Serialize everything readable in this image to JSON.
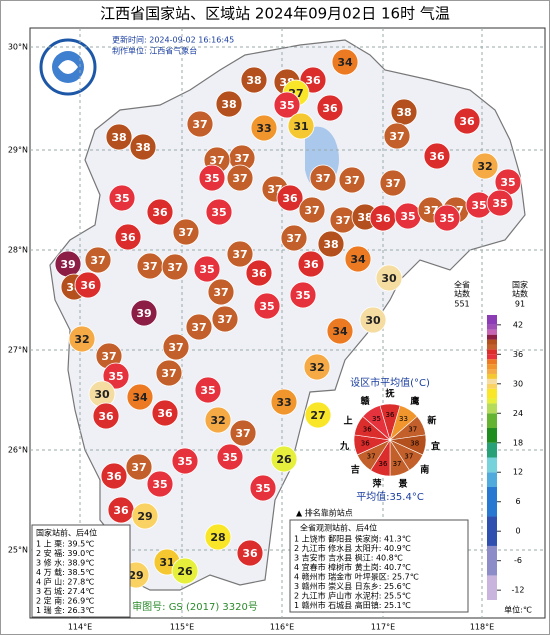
{
  "header": {
    "title": "江西省国家站、区域站  2024年09月02日 16时  气温",
    "updated": "更新时间: 2024-09-02 16:16:45",
    "maker": "制作单位: 江西省气象台"
  },
  "lat_labels": [
    "30°N",
    "29°N",
    "28°N",
    "27°N",
    "26°N",
    "25°N"
  ],
  "lon_labels": [
    "114°E",
    "115°E",
    "116°E",
    "117°E",
    "118°E"
  ],
  "stations": [
    34,
    38,
    38,
    36,
    27,
    38,
    35,
    36,
    38,
    36,
    37,
    33,
    31,
    37,
    38,
    38,
    36,
    32,
    37,
    37,
    35,
    37,
    37,
    37,
    37,
    35,
    37,
    36,
    35,
    36,
    35,
    37,
    37,
    38,
    36,
    35,
    37,
    37,
    35,
    35,
    35,
    36,
    37,
    37,
    37,
    38,
    37,
    37,
    37,
    39,
    38,
    36,
    35,
    36,
    36,
    34,
    30,
    37,
    35,
    35,
    39,
    37,
    37,
    30,
    34,
    32,
    37,
    37,
    35,
    37,
    32,
    30,
    34,
    35,
    33,
    27,
    36,
    36,
    32,
    37,
    35,
    26,
    35,
    37,
    36,
    35,
    35,
    36,
    29,
    28,
    36,
    31,
    29,
    26
  ],
  "color_scale": [
    [
      -14,
      "#c8b4dc"
    ],
    [
      -9,
      "#8c8cc8"
    ],
    [
      -3,
      "#3050b0"
    ],
    [
      3,
      "#2878d2"
    ],
    [
      9,
      "#50aadc"
    ],
    [
      12,
      "#78d2dc"
    ],
    [
      15,
      "#28a078"
    ],
    [
      18,
      "#1e8c1e"
    ],
    [
      21,
      "#64b432"
    ],
    [
      24,
      "#b4dc5a"
    ],
    [
      26,
      "#e6f03c"
    ],
    [
      27,
      "#fae628"
    ],
    [
      29,
      "#fad264"
    ],
    [
      30,
      "#f5dca0"
    ],
    [
      31,
      "#f5c832"
    ],
    [
      32,
      "#f5aa46"
    ],
    [
      33,
      "#f0962d"
    ],
    [
      34,
      "#ec7a23"
    ],
    [
      35,
      "#e6323c"
    ],
    [
      36,
      "#dc2d2d"
    ],
    [
      37,
      "#c35f2a"
    ],
    [
      38,
      "#b4501e"
    ],
    [
      39,
      "#8c1e46"
    ],
    [
      40,
      "#c864b4"
    ],
    [
      41,
      "#a050b4"
    ],
    [
      42,
      "#8c3cb4"
    ]
  ],
  "colorbar": {
    "lim": [
      -14,
      44
    ],
    "ticks": [
      42,
      36,
      30,
      24,
      18,
      12,
      6,
      0,
      -6,
      -12
    ],
    "total_label": "全省\n站数",
    "total": 551,
    "national_label": "国家\n站数",
    "national": 91,
    "unit": "单位:℃"
  },
  "pie": {
    "title": "设区市平均值(°C)",
    "cities": [
      "抚",
      "鹰",
      "新",
      "宜",
      "南",
      "景",
      "萍",
      "吉",
      "九",
      "上",
      "赣"
    ],
    "values": [
      36,
      33,
      37,
      38,
      37,
      37,
      36,
      37,
      36,
      36,
      35
    ],
    "average": "平均值:35.4°C"
  },
  "national_rank": {
    "title": "国家站前、后4位",
    "rows": [
      "1 上  栗: 39.5℃",
      "2 安  福: 39.0℃",
      "3 修  水: 38.9℃",
      "4 万  载: 38.5℃",
      "4 庐  山: 27.8℃",
      "3 石  城: 27.4℃",
      "2 定  南: 26.9℃",
      "1 瑞  金: 26.3℃"
    ]
  },
  "all_rank": {
    "marker": "▲ 排名靠前站点",
    "title": "全省观测站前、后4位",
    "rows": [
      "1 上饶市 鄱阳县 侯家岗: 41.3℃",
      "2 九江市 修水县 太阳升: 40.9℃",
      "3 吉安市 吉水县 枫江: 40.8℃",
      "4 宜春市 樟树市 黄土岗: 40.7℃",
      "4 赣州市 瑞金市 叶坪景区: 25.7℃",
      "3 赣州市 崇义县 日东乡: 25.6℃",
      "2 九江市 庐山市 水泥村: 25.5℃",
      "1 赣州市 石城县 高田镇: 25.1℃"
    ]
  },
  "approval": "审图号: GS (2017) 3320号"
}
